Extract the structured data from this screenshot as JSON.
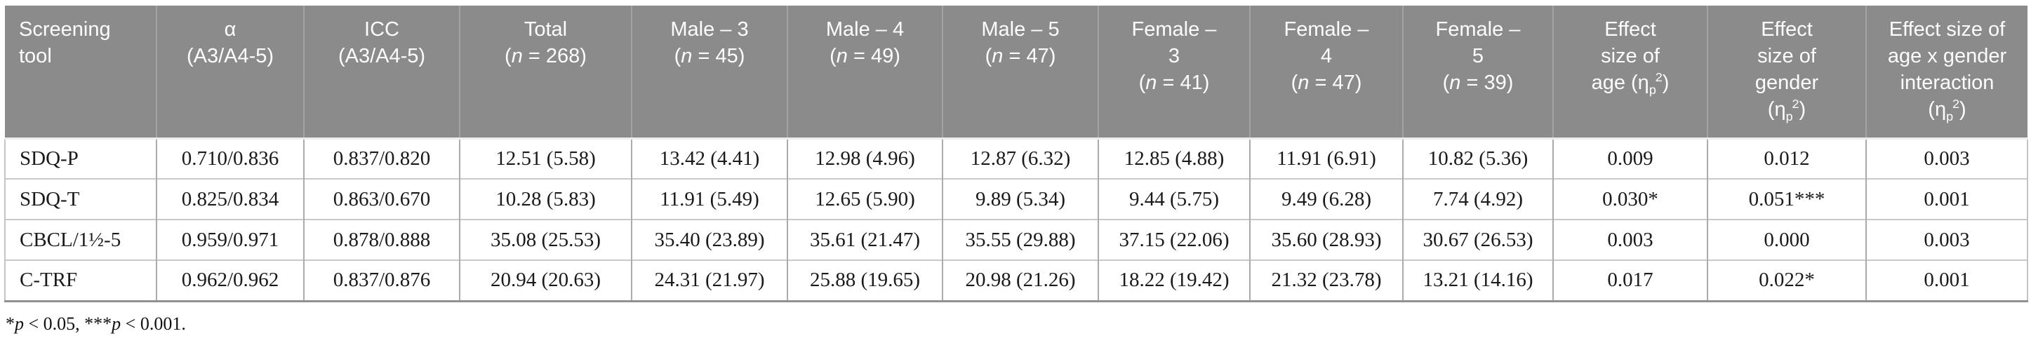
{
  "colors": {
    "header_bg": "#8b8b8b",
    "header_text": "#fdfdfd",
    "header_divider": "#a2a2a2",
    "body_text": "#1a1a1a",
    "body_divider": "#ababab",
    "row_divider": "#c9c9c9",
    "table_bottom_border": "#909090"
  },
  "table": {
    "columns": [
      {
        "id": "screening-tool",
        "align": "left",
        "header_lines": [
          [
            {
              "t": "Screening"
            }
          ],
          [
            {
              "t": "tool"
            }
          ]
        ]
      },
      {
        "id": "alpha",
        "align": "center",
        "header_lines": [
          [
            {
              "t": "α"
            }
          ],
          [
            {
              "t": "(A3/A4-5)"
            }
          ]
        ]
      },
      {
        "id": "icc",
        "align": "center",
        "header_lines": [
          [
            {
              "t": "ICC"
            }
          ],
          [
            {
              "t": "(A3/A4-5)"
            }
          ]
        ]
      },
      {
        "id": "total",
        "align": "center",
        "header_lines": [
          [
            {
              "t": "Total"
            }
          ],
          [
            {
              "t": "("
            },
            {
              "t": "n",
              "i": true
            },
            {
              "t": " = 268)"
            }
          ]
        ]
      },
      {
        "id": "male-3",
        "align": "center",
        "header_lines": [
          [
            {
              "t": "Male – 3"
            }
          ],
          [
            {
              "t": "("
            },
            {
              "t": "n",
              "i": true
            },
            {
              "t": " = 45)"
            }
          ]
        ]
      },
      {
        "id": "male-4",
        "align": "center",
        "header_lines": [
          [
            {
              "t": "Male – 4"
            }
          ],
          [
            {
              "t": "("
            },
            {
              "t": "n",
              "i": true
            },
            {
              "t": " = 49)"
            }
          ]
        ]
      },
      {
        "id": "male-5",
        "align": "center",
        "header_lines": [
          [
            {
              "t": "Male – 5"
            }
          ],
          [
            {
              "t": "("
            },
            {
              "t": "n",
              "i": true
            },
            {
              "t": " = 47)"
            }
          ]
        ]
      },
      {
        "id": "female-3",
        "align": "center",
        "header_lines": [
          [
            {
              "t": "Female –"
            }
          ],
          [
            {
              "t": "3"
            }
          ],
          [
            {
              "t": "("
            },
            {
              "t": "n",
              "i": true
            },
            {
              "t": " = 41)"
            }
          ]
        ]
      },
      {
        "id": "female-4",
        "align": "center",
        "header_lines": [
          [
            {
              "t": "Female –"
            }
          ],
          [
            {
              "t": "4"
            }
          ],
          [
            {
              "t": "("
            },
            {
              "t": "n",
              "i": true
            },
            {
              "t": " = 47)"
            }
          ]
        ]
      },
      {
        "id": "female-5",
        "align": "center",
        "header_lines": [
          [
            {
              "t": "Female –"
            }
          ],
          [
            {
              "t": "5"
            }
          ],
          [
            {
              "t": "("
            },
            {
              "t": "n",
              "i": true
            },
            {
              "t": " = 39)"
            }
          ]
        ]
      },
      {
        "id": "effect-size-age",
        "align": "center",
        "header_lines": [
          [
            {
              "t": "Effect"
            }
          ],
          [
            {
              "t": "size of"
            }
          ],
          [
            {
              "t": "age (η"
            },
            {
              "t": "p",
              "sub": true
            },
            {
              "t": "2",
              "sup": true
            },
            {
              "t": ")"
            }
          ]
        ]
      },
      {
        "id": "effect-size-gender",
        "align": "center",
        "header_lines": [
          [
            {
              "t": "Effect"
            }
          ],
          [
            {
              "t": "size of"
            }
          ],
          [
            {
              "t": "gender"
            }
          ],
          [
            {
              "t": "(η"
            },
            {
              "t": "p",
              "sub": true
            },
            {
              "t": "2",
              "sup": true
            },
            {
              "t": ")"
            }
          ]
        ]
      },
      {
        "id": "effect-size-interaction",
        "align": "center",
        "header_lines": [
          [
            {
              "t": "Effect size of"
            }
          ],
          [
            {
              "t": "age x gender"
            }
          ],
          [
            {
              "t": "interaction"
            }
          ],
          [
            {
              "t": "(η"
            },
            {
              "t": "p",
              "sub": true
            },
            {
              "t": "2",
              "sup": true
            },
            {
              "t": ")"
            }
          ]
        ]
      }
    ],
    "rows": [
      {
        "id": "sdq-p",
        "cells": [
          "SDQ-P",
          "0.710/0.836",
          "0.837/0.820",
          "12.51 (5.58)",
          "13.42 (4.41)",
          "12.98 (4.96)",
          "12.87 (6.32)",
          "12.85 (4.88)",
          "11.91 (6.91)",
          "10.82 (5.36)",
          "0.009",
          "0.012",
          "0.003"
        ]
      },
      {
        "id": "sdq-t",
        "cells": [
          "SDQ-T",
          "0.825/0.834",
          "0.863/0.670",
          "10.28 (5.83)",
          "11.91 (5.49)",
          "12.65 (5.90)",
          "9.89 (5.34)",
          "9.44 (5.75)",
          "9.49 (6.28)",
          "7.74 (4.92)",
          "0.030*",
          "0.051***",
          "0.001"
        ]
      },
      {
        "id": "cbcl-1half-5",
        "cells": [
          "CBCL/1½-5",
          "0.959/0.971",
          "0.878/0.888",
          "35.08 (25.53)",
          "35.40 (23.89)",
          "35.61 (21.47)",
          "35.55 (29.88)",
          "37.15 (22.06)",
          "35.60 (28.93)",
          "30.67 (26.53)",
          "0.003",
          "0.000",
          "0.003"
        ]
      },
      {
        "id": "c-trf",
        "cells": [
          "C-TRF",
          "0.962/0.962",
          "0.837/0.876",
          "20.94 (20.63)",
          "24.31 (21.97)",
          "25.88 (19.65)",
          "20.98 (21.26)",
          "18.22 (19.42)",
          "21.32 (23.78)",
          "13.21 (14.16)",
          "0.017",
          "0.022*",
          "0.001"
        ]
      }
    ],
    "footnote_runs": [
      {
        "t": "*"
      },
      {
        "t": "p",
        "i": true
      },
      {
        "t": " < 0.05, "
      },
      {
        "t": "***"
      },
      {
        "t": "p",
        "i": true
      },
      {
        "t": " < 0.001."
      }
    ]
  }
}
